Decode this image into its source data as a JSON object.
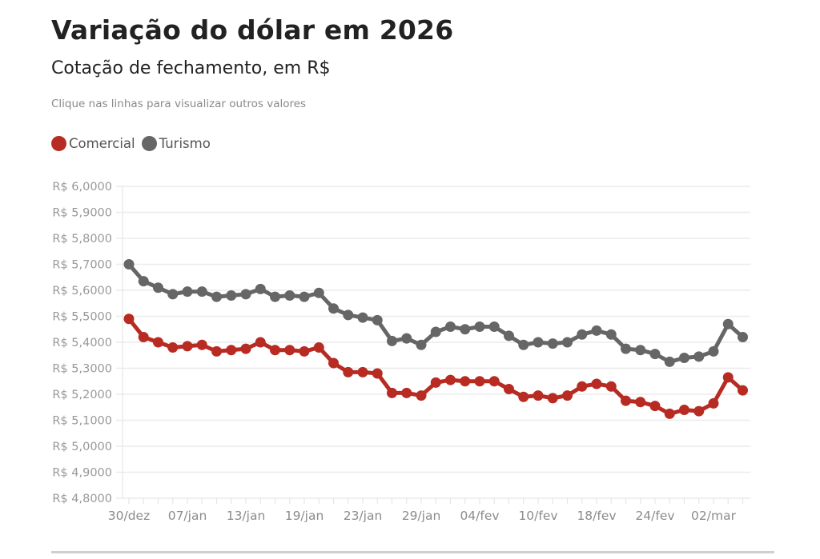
{
  "header": {
    "title": "Variação do dólar em 2026",
    "subtitle": "Cotação de fechamento, em R$",
    "hint": "Clique nas linhas para visualizar outros valores"
  },
  "legend": [
    {
      "label": "Comercial",
      "color": "#b82b23"
    },
    {
      "label": "Turismo",
      "color": "#666666"
    }
  ],
  "chart_data": {
    "type": "line",
    "title": "Variação do dólar em 2026",
    "subtitle": "Cotação de fechamento, em R$",
    "xlabel": "",
    "ylabel": "",
    "ylim": [
      4.8,
      6.0
    ],
    "y_ticks": [
      {
        "value": 6.0,
        "label": "R$ 6,0000"
      },
      {
        "value": 5.9,
        "label": "R$ 5,9000"
      },
      {
        "value": 5.8,
        "label": "R$ 5,8000"
      },
      {
        "value": 5.7,
        "label": "R$ 5,7000"
      },
      {
        "value": 5.6,
        "label": "R$ 5,6000"
      },
      {
        "value": 5.5,
        "label": "R$ 5,5000"
      },
      {
        "value": 5.4,
        "label": "R$ 5,4000"
      },
      {
        "value": 5.3,
        "label": "R$ 5,3000"
      },
      {
        "value": 5.2,
        "label": "R$ 5,2000"
      },
      {
        "value": 5.1,
        "label": "R$ 5,1000"
      },
      {
        "value": 5.0,
        "label": "R$ 5,0000"
      },
      {
        "value": 4.9,
        "label": "R$ 4,9000"
      },
      {
        "value": 4.8,
        "label": "R$ 4,8000"
      }
    ],
    "point_count": 43,
    "x_tick_labels": [
      {
        "index": 0,
        "label": "30/dez"
      },
      {
        "index": 4,
        "label": "07/jan"
      },
      {
        "index": 8,
        "label": "13/jan"
      },
      {
        "index": 12,
        "label": "19/jan"
      },
      {
        "index": 16,
        "label": "23/jan"
      },
      {
        "index": 20,
        "label": "29/jan"
      },
      {
        "index": 24,
        "label": "04/fev"
      },
      {
        "index": 28,
        "label": "10/fev"
      },
      {
        "index": 32,
        "label": "18/fev"
      },
      {
        "index": 36,
        "label": "24/fev"
      },
      {
        "index": 40,
        "label": "02/mar"
      }
    ],
    "grid": true,
    "legend_position": "top-left",
    "series": [
      {
        "name": "Turismo",
        "color": "#666666",
        "values": [
          5.7,
          5.635,
          5.61,
          5.585,
          5.595,
          5.595,
          5.575,
          5.58,
          5.585,
          5.605,
          5.575,
          5.58,
          5.575,
          5.59,
          5.53,
          5.505,
          5.495,
          5.485,
          5.405,
          5.415,
          5.39,
          5.44,
          5.46,
          5.45,
          5.46,
          5.46,
          5.425,
          5.39,
          5.4,
          5.395,
          5.4,
          5.43,
          5.445,
          5.43,
          5.375,
          5.37,
          5.355,
          5.325,
          5.34,
          5.345,
          5.365,
          5.47,
          5.42
        ]
      },
      {
        "name": "Comercial",
        "color": "#b82b23",
        "values": [
          5.49,
          5.42,
          5.4,
          5.38,
          5.385,
          5.39,
          5.365,
          5.37,
          5.375,
          5.4,
          5.37,
          5.37,
          5.365,
          5.38,
          5.32,
          5.285,
          5.285,
          5.28,
          5.205,
          5.205,
          5.195,
          5.245,
          5.255,
          5.25,
          5.25,
          5.25,
          5.22,
          5.19,
          5.195,
          5.185,
          5.195,
          5.23,
          5.24,
          5.23,
          5.175,
          5.17,
          5.155,
          5.125,
          5.14,
          5.135,
          5.165,
          5.265,
          5.215
        ]
      }
    ]
  }
}
